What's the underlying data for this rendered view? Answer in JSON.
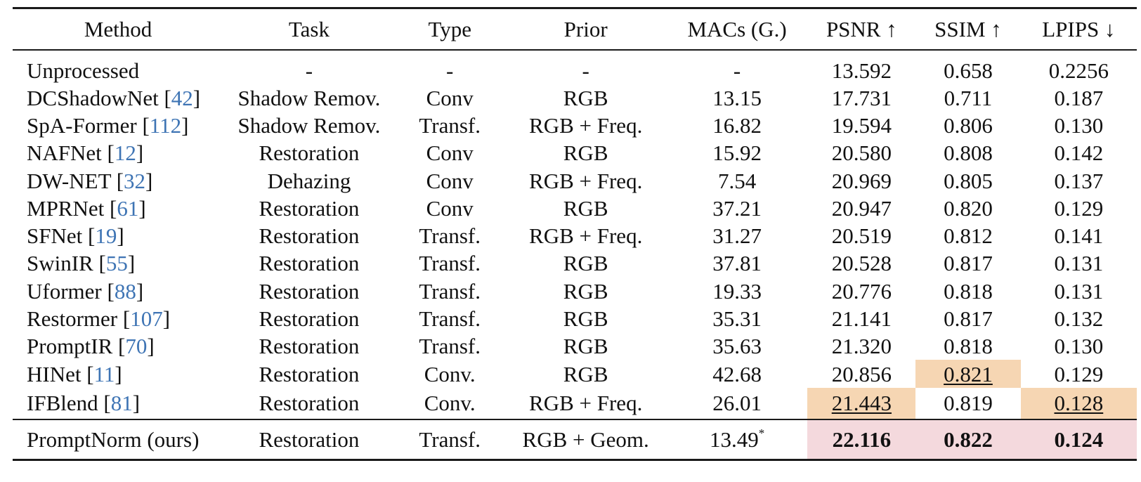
{
  "table": {
    "headers": {
      "method": "Method",
      "task": "Task",
      "type": "Type",
      "prior": "Prior",
      "macs": "MACs (G.)",
      "psnr": "PSNR ↑",
      "ssim": "SSIM ↑",
      "lpips": "LPIPS ↓"
    },
    "rows": [
      {
        "method": "Unprocessed",
        "ref": "",
        "task": "-",
        "type": "-",
        "prior": "-",
        "macs": "-",
        "psnr": "13.592",
        "ssim": "0.658",
        "lpips": "0.2256"
      },
      {
        "method": "DCShadowNet",
        "ref": "42",
        "task": "Shadow Remov.",
        "type": "Conv",
        "prior": "RGB",
        "macs": "13.15",
        "psnr": "17.731",
        "ssim": "0.711",
        "lpips": "0.187"
      },
      {
        "method": "SpA-Former",
        "ref": "112",
        "task": "Shadow Remov.",
        "type": "Transf.",
        "prior": "RGB + Freq.",
        "macs": "16.82",
        "psnr": "19.594",
        "ssim": "0.806",
        "lpips": "0.130"
      },
      {
        "method": "NAFNet",
        "ref": "12",
        "task": "Restoration",
        "type": "Conv",
        "prior": "RGB",
        "macs": "15.92",
        "psnr": "20.580",
        "ssim": "0.808",
        "lpips": "0.142"
      },
      {
        "method": "DW-NET",
        "ref": "32",
        "task": "Dehazing",
        "type": "Conv",
        "prior": "RGB + Freq.",
        "macs": "7.54",
        "psnr": "20.969",
        "ssim": "0.805",
        "lpips": "0.137"
      },
      {
        "method": "MPRNet",
        "ref": "61",
        "task": "Restoration",
        "type": "Conv",
        "prior": "RGB",
        "macs": "37.21",
        "psnr": "20.947",
        "ssim": "0.820",
        "lpips": "0.129"
      },
      {
        "method": "SFNet",
        "ref": "19",
        "task": "Restoration",
        "type": "Transf.",
        "prior": "RGB + Freq.",
        "macs": "31.27",
        "psnr": "20.519",
        "ssim": "0.812",
        "lpips": "0.141"
      },
      {
        "method": "SwinIR",
        "ref": "55",
        "task": "Restoration",
        "type": "Transf.",
        "prior": "RGB",
        "macs": "37.81",
        "psnr": "20.528",
        "ssim": "0.817",
        "lpips": "0.131"
      },
      {
        "method": "Uformer",
        "ref": "88",
        "task": "Restoration",
        "type": "Transf.",
        "prior": "RGB",
        "macs": "19.33",
        "psnr": "20.776",
        "ssim": "0.818",
        "lpips": "0.131"
      },
      {
        "method": "Restormer",
        "ref": "107",
        "task": "Restoration",
        "type": "Transf.",
        "prior": "RGB",
        "macs": "35.31",
        "psnr": "21.141",
        "ssim": "0.817",
        "lpips": "0.132"
      },
      {
        "method": "PromptIR",
        "ref": "70",
        "task": "Restoration",
        "type": "Transf.",
        "prior": "RGB",
        "macs": "35.63",
        "psnr": "21.320",
        "ssim": "0.818",
        "lpips": "0.130"
      },
      {
        "method": "HINet",
        "ref": "11",
        "task": "Restoration",
        "type": "Conv.",
        "prior": "RGB",
        "macs": "42.68",
        "psnr": "20.856",
        "ssim": "0.821",
        "lpips": "0.129"
      },
      {
        "method": "IFBlend",
        "ref": "81",
        "task": "Restoration",
        "type": "Conv.",
        "prior": "RGB + Freq.",
        "macs": "26.01",
        "psnr": "21.443",
        "ssim": "0.819",
        "lpips": "0.128"
      }
    ],
    "ours": {
      "method": "PromptNorm (ours)",
      "task": "Restoration",
      "type": "Transf.",
      "prior": "RGB + Geom.",
      "macs": "13.49",
      "macs_note": "*",
      "psnr": "22.116",
      "ssim": "0.822",
      "lpips": "0.124"
    },
    "highlight_colors": {
      "second_best": "#f6d6b3",
      "best": "#f4d9dd",
      "reference_link": "#3e74b4"
    }
  }
}
